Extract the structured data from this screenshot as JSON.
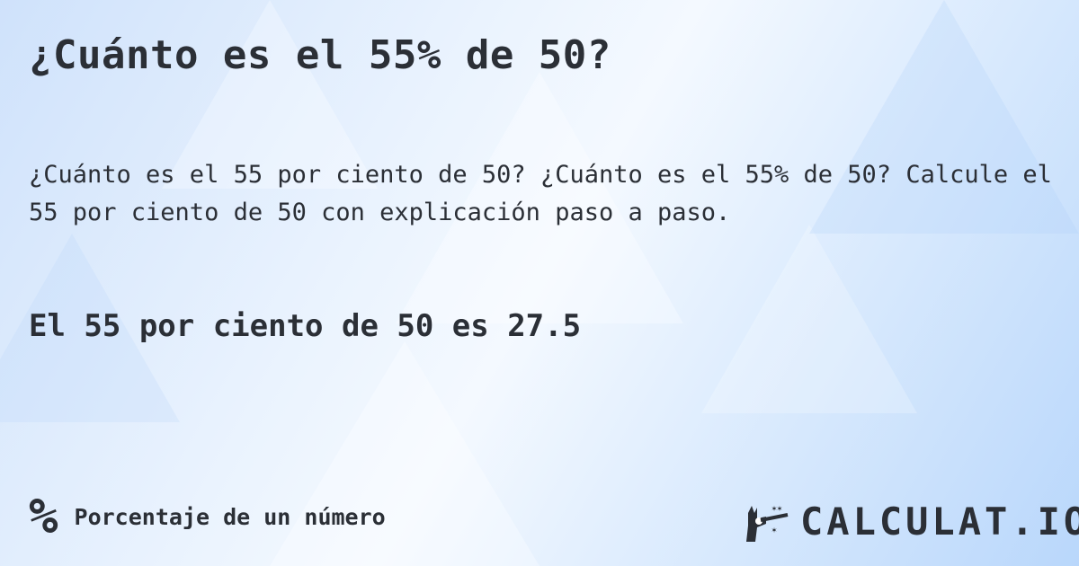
{
  "title": "¿Cuánto es el 55% de 50?",
  "description": "¿Cuánto es el 55 por ciento de 50? ¿Cuánto es el 55% de 50? Calcule el 55 por ciento de 50 con explicación paso a paso.",
  "result": "El 55 por ciento de 50 es 27.5",
  "footer": {
    "icon": "percent-icon",
    "icon_glyph": "%",
    "category": "Porcentaje de un número"
  },
  "logo": {
    "text": "CALCULAT.IO",
    "icon": "magic-hand-icon"
  },
  "colors": {
    "text": "#2b2f36",
    "background": "#dbeafd"
  }
}
